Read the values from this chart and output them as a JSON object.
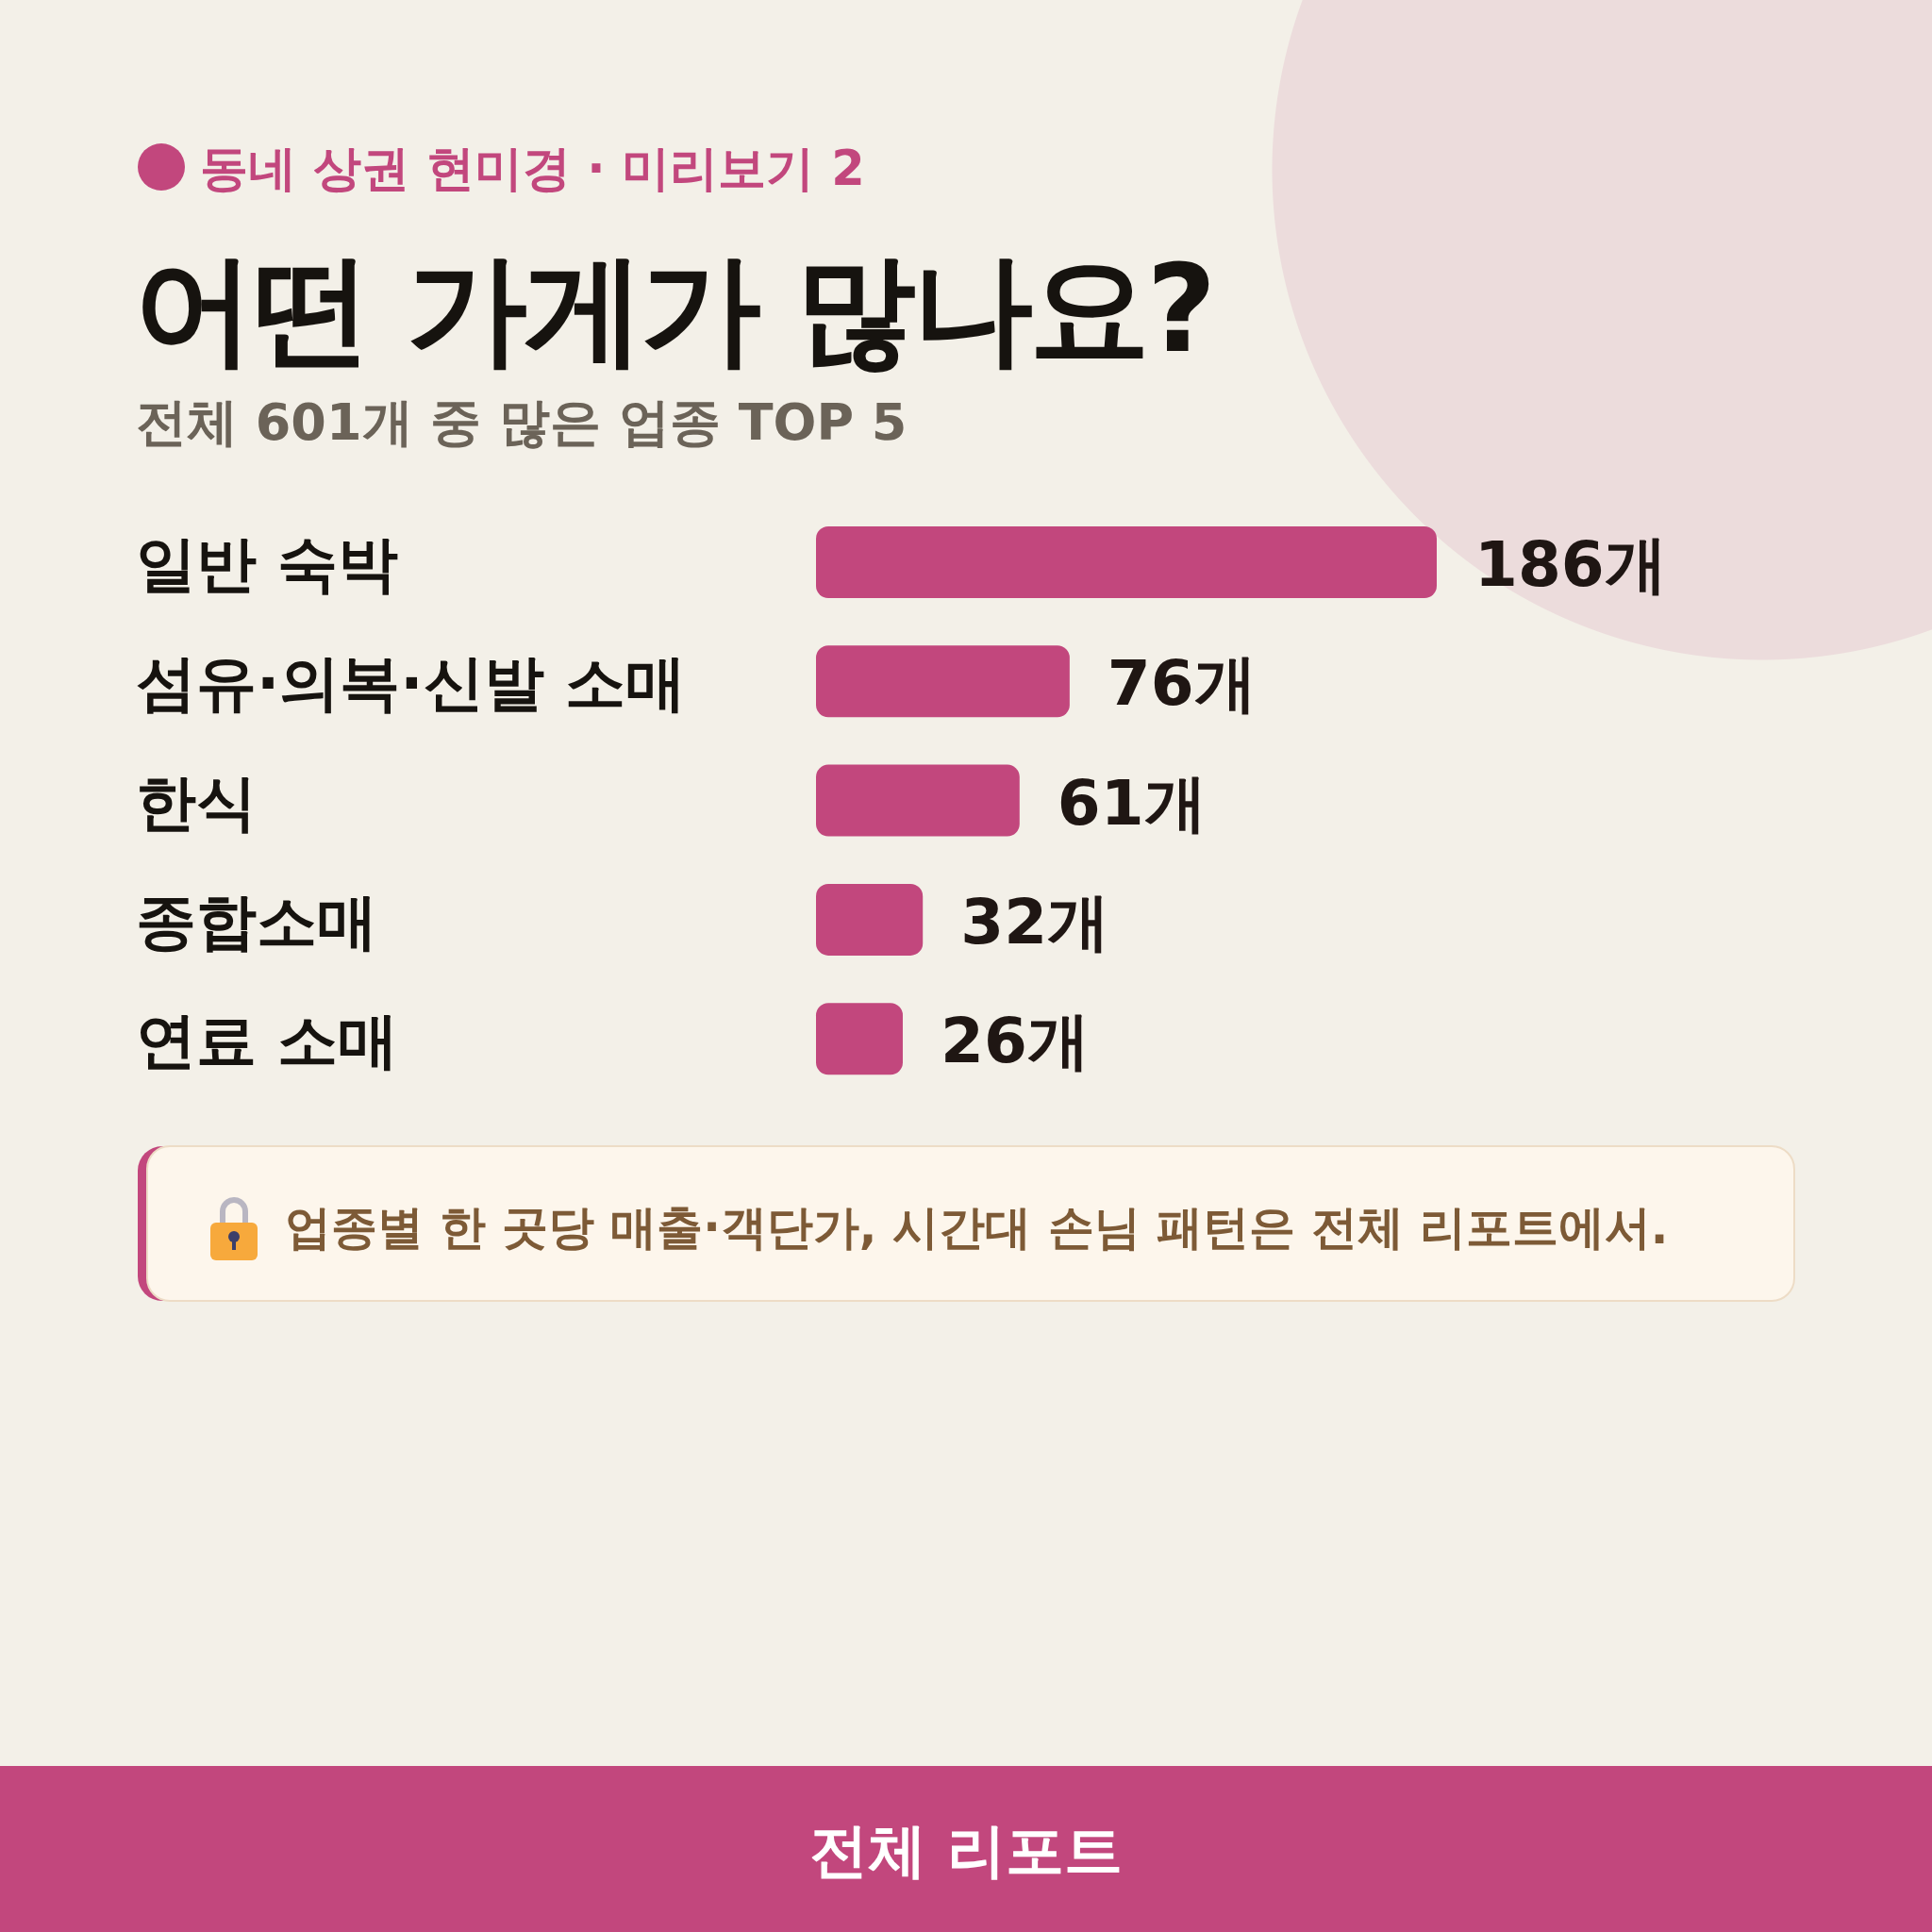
{
  "chart_data": {
    "type": "bar",
    "orientation": "horizontal",
    "title": "어떤 가게가 많나요?",
    "subtitle": "전체 601개 중 많은 업종 TOP 5",
    "categories": [
      "일반 숙박",
      "섬유·의복·신발 소매",
      "한식",
      "종합소매",
      "연료 소매"
    ],
    "values": [
      186,
      76,
      61,
      32,
      26
    ],
    "value_labels": [
      "186개",
      "76개",
      "61개",
      "32개",
      "26개"
    ],
    "color": "#c2477d",
    "annotations": [
      "동네 상권 현미경 · 미리보기 2",
      "업종별 한 곳당 매출·객단가, 시간대 손님 패턴은 전체 리포트에서.",
      "전체 리포트"
    ]
  }
}
